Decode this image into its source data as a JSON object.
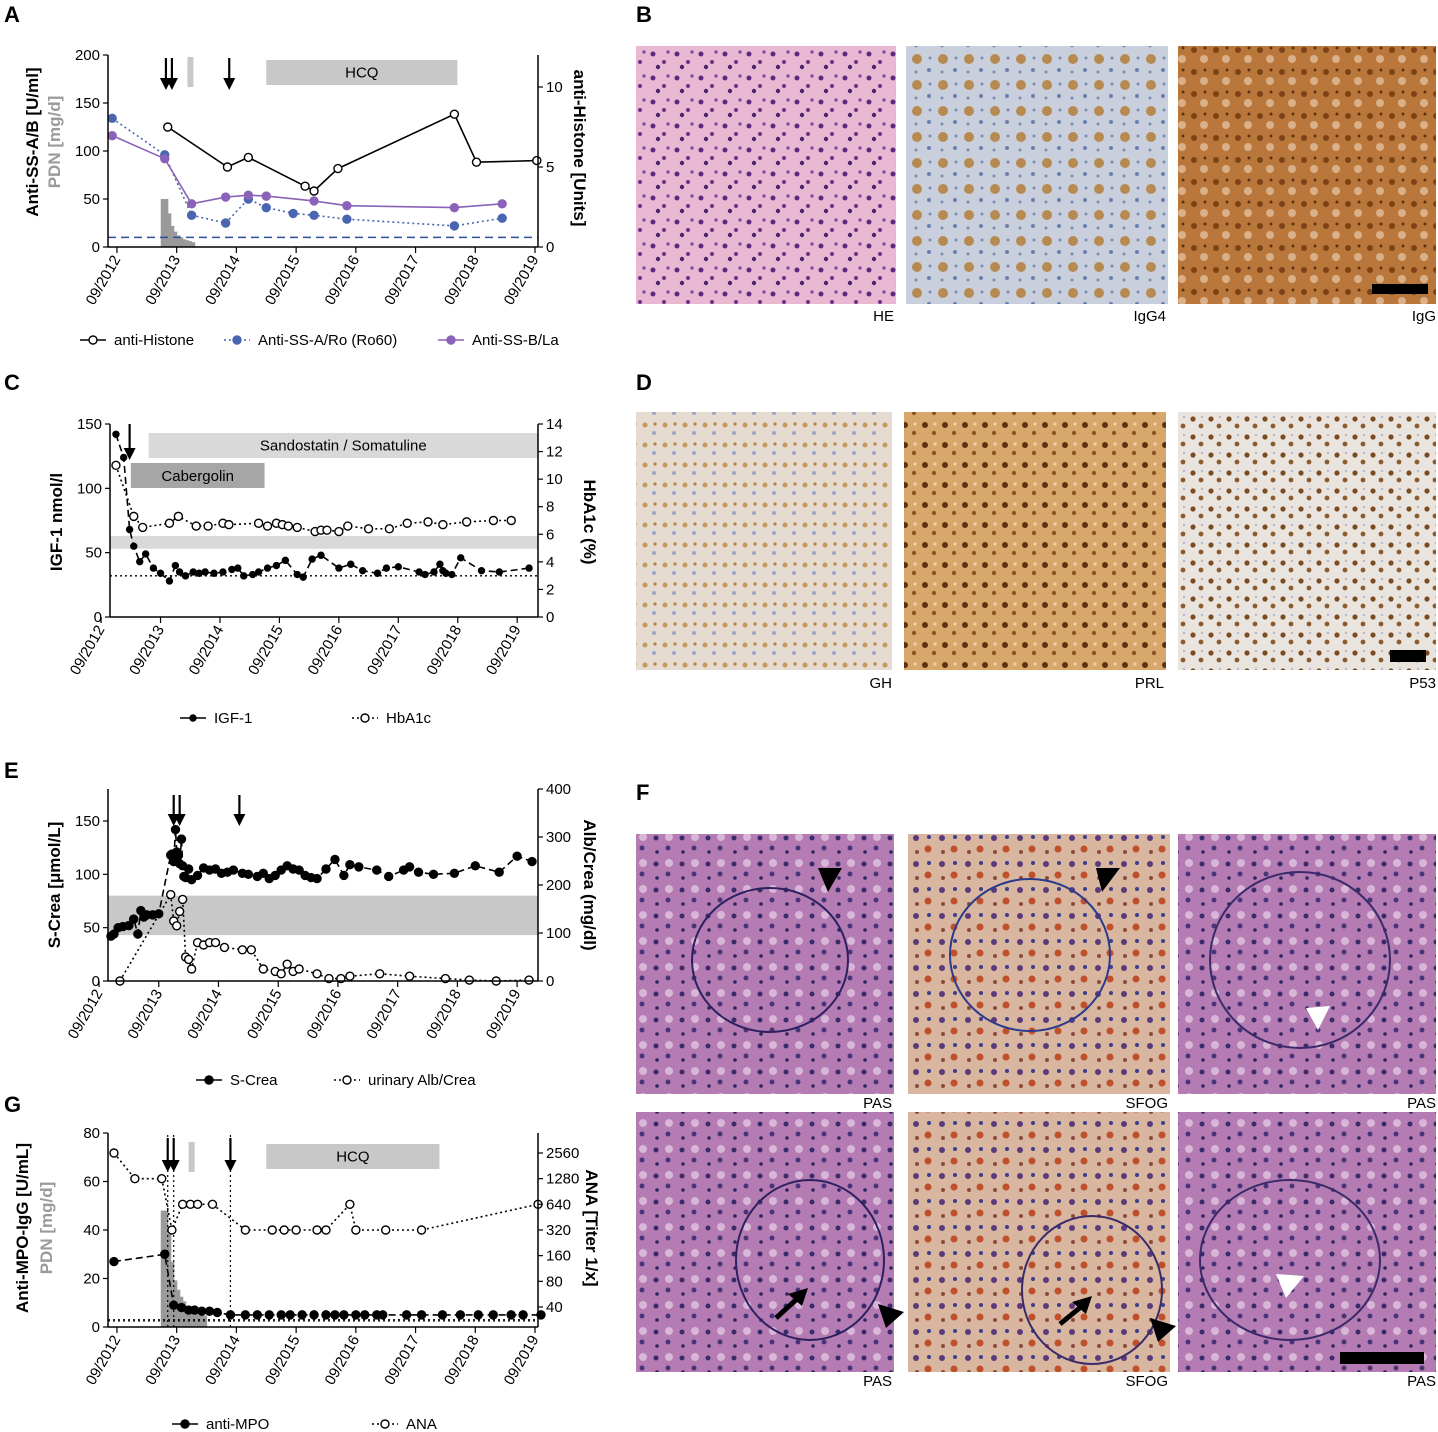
{
  "colors": {
    "black": "#000000",
    "blue": "#4a66b0",
    "purple": "#8a62b8",
    "gray_band": "#c8c8c8",
    "light_band": "#d9d9d9",
    "dark_bar": "#a6a6a6",
    "pdn_gray": "#9a9a9a",
    "dash_blue": "#2f4f9c"
  },
  "x_ticks": [
    "09/2012",
    "09/2013",
    "09/2014",
    "09/2015",
    "09/2016",
    "09/2017",
    "09/2018",
    "09/2019"
  ],
  "panels": {
    "A": {
      "letter": "A"
    },
    "B": {
      "letter": "B"
    },
    "C": {
      "letter": "C"
    },
    "D": {
      "letter": "D"
    },
    "E": {
      "letter": "E"
    },
    "F": {
      "letter": "F"
    },
    "G": {
      "letter": "G"
    }
  },
  "histology": {
    "B": [
      "HE",
      "IgG4",
      "IgG"
    ],
    "D": [
      "GH",
      "PRL",
      "P53"
    ],
    "F_top": [
      "PAS",
      "SFOG",
      "PAS"
    ],
    "F_bottom": [
      "PAS",
      "SFOG",
      "PAS"
    ]
  },
  "chart_data": [
    {
      "panel": "A",
      "type": "line",
      "ylabel_left_main": "Anti-SS-A/B [U/ml]",
      "ylabel_left_sub": "PDN [mg/d]",
      "ylabel_right": "anti-Histone [Units]",
      "ylim_left": [
        0,
        200
      ],
      "yticks_left": [
        0,
        50,
        100,
        150,
        200
      ],
      "ylim_right": [
        0,
        12
      ],
      "yticks_right": [
        0,
        5,
        10
      ],
      "xlim": [
        2012.55,
        2019.75
      ],
      "therapy_bars": [
        {
          "label": "HCQ",
          "start": 2015.2,
          "end": 2018.4
        }
      ],
      "markers": {
        "arrows": [
          2013.52,
          2013.62,
          2014.58
        ],
        "small_bar": 2013.93
      },
      "reference_line": 10,
      "pdn": {
        "x": [
          2013.47,
          2013.52,
          2013.57,
          2013.62,
          2013.67,
          2013.72,
          2013.77,
          2013.82,
          2013.87,
          2013.92,
          2013.97
        ],
        "y": [
          50,
          50,
          35,
          22,
          16,
          12,
          10,
          8,
          7,
          6,
          5
        ]
      },
      "series": [
        {
          "name": "anti-Histone",
          "axis": "right",
          "x": [
            2013.55,
            2014.55,
            2014.9,
            2015.85,
            2016.0,
            2016.4,
            2018.35,
            2018.72,
            2019.73
          ],
          "y": [
            7.5,
            5.0,
            5.6,
            3.8,
            3.5,
            4.9,
            8.3,
            5.3,
            5.4
          ]
        },
        {
          "name": "Anti-SS-A/Ro (Ro60)",
          "axis": "left",
          "x": [
            2012.62,
            2013.5,
            2013.95,
            2014.52,
            2014.9,
            2015.2,
            2015.65,
            2016.0,
            2016.55,
            2018.35,
            2019.15
          ],
          "y": [
            134,
            96,
            33,
            25,
            50,
            41,
            35,
            33,
            29,
            22,
            30
          ]
        },
        {
          "name": "Anti-SS-B/La",
          "axis": "left",
          "x": [
            2012.62,
            2013.5,
            2013.95,
            2014.52,
            2014.9,
            2015.2,
            2016.0,
            2016.55,
            2018.35,
            2019.15
          ],
          "y": [
            116,
            92,
            45,
            52,
            54,
            53,
            48,
            43,
            41,
            45
          ]
        }
      ],
      "legend": [
        "anti-Histone",
        "Anti-SS-A/Ro (Ro60)",
        "Anti-SS-B/La"
      ]
    },
    {
      "panel": "C",
      "type": "line",
      "ylabel_left": "IGF-1 nmol/l",
      "ylabel_right": "HbA1c (%)",
      "ylim_left": [
        0,
        150
      ],
      "yticks_left": [
        0,
        50,
        100,
        150
      ],
      "ylim_right": [
        0,
        14
      ],
      "yticks_right": [
        0,
        2,
        4,
        6,
        8,
        10,
        12,
        14
      ],
      "xlim": [
        2012.95,
        2020.15
      ],
      "therapy_bars": [
        {
          "label": "Sandostatin  / Somatuline",
          "start": 2013.6,
          "end": 2020.15
        },
        {
          "label": "Cabergolin",
          "start": 2013.3,
          "end": 2015.55
        }
      ],
      "markers": {
        "arrows": [
          2013.28
        ]
      },
      "normal_range_band": [
        53,
        63
      ],
      "reference_line": 32,
      "series": [
        {
          "name": "IGF-1",
          "axis": "left",
          "x": [
            2013.05,
            2013.18,
            2013.28,
            2013.35,
            2013.45,
            2013.55,
            2013.68,
            2013.8,
            2013.95,
            2014.05,
            2014.12,
            2014.22,
            2014.35,
            2014.45,
            2014.55,
            2014.7,
            2014.85,
            2015.0,
            2015.1,
            2015.2,
            2015.35,
            2015.45,
            2015.6,
            2015.75,
            2015.9,
            2016.1,
            2016.2,
            2016.35,
            2016.5,
            2016.8,
            2017.0,
            2017.2,
            2017.45,
            2017.6,
            2017.8,
            2018.15,
            2018.25,
            2018.4,
            2018.5,
            2018.55,
            2018.6,
            2018.7,
            2018.85,
            2019.2,
            2019.5,
            2020.0
          ],
          "y": [
            142,
            124,
            68,
            55,
            43,
            49,
            38,
            34,
            28,
            40,
            35,
            32,
            35,
            34,
            35,
            34,
            35,
            37,
            38,
            32,
            33,
            35,
            38,
            40,
            44,
            33,
            31,
            45,
            48,
            38,
            41,
            36,
            34,
            38,
            39,
            35,
            33,
            35,
            41,
            36,
            34,
            33,
            46,
            36,
            35,
            38
          ]
        },
        {
          "name": "HbA1c",
          "axis": "right",
          "x": [
            2013.05,
            2013.35,
            2013.5,
            2013.95,
            2014.1,
            2014.4,
            2014.6,
            2014.85,
            2014.95,
            2015.45,
            2015.6,
            2015.75,
            2015.85,
            2015.95,
            2016.1,
            2016.4,
            2016.5,
            2016.6,
            2016.8,
            2016.95,
            2017.3,
            2017.65,
            2017.95,
            2018.3,
            2018.55,
            2018.95,
            2019.4,
            2019.7
          ],
          "y": [
            11.0,
            7.3,
            6.5,
            6.8,
            7.3,
            6.6,
            6.6,
            6.8,
            6.7,
            6.8,
            6.6,
            6.8,
            6.7,
            6.6,
            6.5,
            6.2,
            6.3,
            6.3,
            6.2,
            6.6,
            6.4,
            6.4,
            6.8,
            6.9,
            6.7,
            6.9,
            7.0,
            7.0
          ]
        }
      ],
      "legend": [
        "IGF-1",
        "HbA1c"
      ]
    },
    {
      "panel": "E",
      "type": "line",
      "ylabel_left": "S-Crea [μmol/L]",
      "ylabel_right": "Alb/Crea (mg/dl)",
      "ylim_left": [
        0,
        180
      ],
      "yticks_left": [
        0,
        50,
        100,
        150
      ],
      "ylim_right": [
        0,
        400
      ],
      "yticks_right": [
        0,
        100,
        200,
        300,
        400
      ],
      "xlim": [
        2012.95,
        2020.15
      ],
      "markers": {
        "arrows": [
          2014.05,
          2014.15,
          2015.15
        ]
      },
      "normal_range_band": [
        43,
        80
      ],
      "series": [
        {
          "name": "S-Crea",
          "axis": "left",
          "x": [
            2013.0,
            2013.05,
            2013.12,
            2013.2,
            2013.3,
            2013.38,
            2013.45,
            2013.5,
            2013.55,
            2013.6,
            2013.7,
            2013.8,
            2014.0,
            2014.02,
            2014.05,
            2014.08,
            2014.1,
            2014.12,
            2014.15,
            2014.18,
            2014.2,
            2014.22,
            2014.25,
            2014.3,
            2014.35,
            2014.45,
            2014.55,
            2014.65,
            2014.75,
            2014.85,
            2014.95,
            2015.05,
            2015.2,
            2015.3,
            2015.45,
            2015.55,
            2015.65,
            2015.75,
            2015.85,
            2015.95,
            2016.05,
            2016.15,
            2016.25,
            2016.35,
            2016.45,
            2016.6,
            2016.75,
            2016.9,
            2017.0,
            2017.15,
            2017.45,
            2017.65,
            2017.9,
            2018.0,
            2018.15,
            2018.4,
            2018.75,
            2019.1,
            2019.5,
            2019.8,
            2020.05
          ],
          "y": [
            42,
            44,
            50,
            51,
            52,
            58,
            44,
            66,
            60,
            62,
            62,
            63,
            118,
            119,
            112,
            142,
            121,
            117,
            110,
            133,
            108,
            98,
            97,
            105,
            95,
            99,
            106,
            104,
            105,
            101,
            102,
            104,
            101,
            100,
            98,
            101,
            96,
            99,
            104,
            108,
            105,
            104,
            99,
            97,
            96,
            105,
            114,
            99,
            109,
            107,
            104,
            98,
            104,
            107,
            102,
            100,
            101,
            108,
            102,
            117,
            112
          ]
        },
        {
          "name": "urinary Alb/Crea",
          "axis": "right",
          "x": [
            2013.15,
            2014.0,
            2014.05,
            2014.1,
            2014.15,
            2014.2,
            2014.25,
            2014.3,
            2014.35,
            2014.45,
            2014.55,
            2014.65,
            2014.75,
            2014.9,
            2015.2,
            2015.35,
            2015.55,
            2015.75,
            2015.85,
            2015.95,
            2016.05,
            2016.15,
            2016.45,
            2016.65,
            2016.85,
            2017.0,
            2017.5,
            2018.0,
            2018.6,
            2019.0,
            2019.45,
            2020.0
          ],
          "y": [
            0,
            180,
            125,
            115,
            145,
            170,
            50,
            45,
            25,
            80,
            75,
            80,
            80,
            70,
            65,
            65,
            25,
            20,
            15,
            35,
            20,
            25,
            15,
            5,
            5,
            10,
            15,
            10,
            5,
            2,
            0,
            2
          ]
        }
      ],
      "legend": [
        "S-Crea",
        "urinary Alb/Crea"
      ]
    },
    {
      "panel": "G",
      "type": "line",
      "ylabel_left_main": "Anti-MPO-IgG [U/mL]",
      "ylabel_left_sub": "PDN [mg/d]",
      "ylabel_right": "ANA [Titer 1/x]",
      "ylim_left": [
        0,
        80
      ],
      "yticks_left": [
        0,
        20,
        40,
        60,
        80
      ],
      "yticks_right": [
        "40",
        "80",
        "160",
        "320",
        "640",
        "1280",
        "2560"
      ],
      "xlim": [
        2012.55,
        2019.75
      ],
      "therapy_bars": [
        {
          "label": "HCQ",
          "start": 2015.2,
          "end": 2018.1
        }
      ],
      "markers": {
        "arrows": [
          2013.55,
          2013.65,
          2014.6
        ],
        "small_bar": 2013.95
      },
      "reference_line": 3,
      "pdn": {
        "x": [
          2013.47,
          2013.52,
          2013.57,
          2013.62,
          2013.67,
          2013.72,
          2013.77,
          2013.82,
          2013.87,
          2013.92,
          2013.97,
          2014.02,
          2014.07,
          2014.12,
          2014.17
        ],
        "y": [
          50,
          50,
          40,
          28,
          20,
          16,
          13,
          11,
          9,
          8,
          7,
          6,
          5,
          5,
          5
        ]
      },
      "series": [
        {
          "name": "anti-MPO",
          "axis": "left",
          "x": [
            2012.65,
            2013.5,
            2013.65,
            2013.78,
            2013.9,
            2014.0,
            2014.12,
            2014.25,
            2014.38,
            2014.6,
            2014.85,
            2015.05,
            2015.25,
            2015.45,
            2015.6,
            2015.8,
            2016.0,
            2016.2,
            2016.35,
            2016.5,
            2016.7,
            2016.85,
            2017.05,
            2017.15,
            2017.55,
            2017.8,
            2018.15,
            2018.45,
            2018.75,
            2019.0,
            2019.3,
            2019.5,
            2019.8
          ],
          "y": [
            27,
            30,
            9,
            8,
            7,
            7,
            6.5,
            6.5,
            6,
            5,
            5,
            5,
            5,
            5,
            5,
            5,
            5,
            5,
            5,
            5,
            5,
            5,
            5,
            5,
            5,
            5,
            5,
            5,
            5,
            5,
            5,
            5,
            5
          ]
        },
        {
          "name": "ANA",
          "axis": "right",
          "x": [
            2012.65,
            2013.0,
            2013.45,
            2013.62,
            2013.8,
            2013.93,
            2014.05,
            2014.3,
            2014.85,
            2015.3,
            2015.5,
            2015.7,
            2016.05,
            2016.2,
            2016.6,
            2016.7,
            2017.2,
            2017.8,
            2019.75
          ],
          "y": [
            2560,
            1280,
            1280,
            320,
            640,
            640,
            640,
            640,
            320,
            320,
            320,
            320,
            320,
            320,
            640,
            320,
            320,
            320,
            640
          ]
        }
      ],
      "legend": [
        "anti-MPO",
        "ANA"
      ]
    }
  ]
}
